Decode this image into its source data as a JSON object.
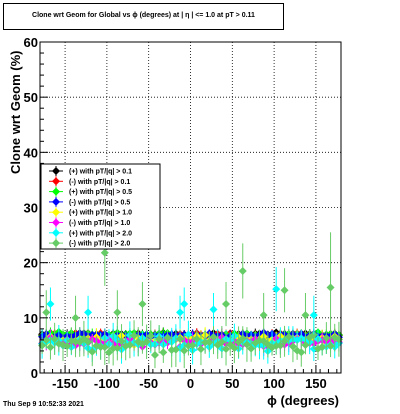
{
  "footer_text": "Thu Sep  9 10:52:33 2021",
  "chart_data": {
    "type": "scatter",
    "title": "Clone wrt Geom for Global vs ϕ (degrees) at | η | <= 1.0 at pT > 0.11",
    "xlabel": "ϕ (degrees)",
    "ylabel": "Clone wrt Geom (%)",
    "xlim": [
      -180,
      180
    ],
    "ylim": [
      0,
      60
    ],
    "x_ticks": [
      -150,
      -100,
      -50,
      0,
      50,
      100,
      150
    ],
    "y_ticks": [
      0,
      10,
      20,
      30,
      40,
      50,
      60
    ],
    "grid": true,
    "legend_position": "left-middle",
    "n_bins": 72,
    "series": [
      {
        "name": "(+) with pT/|q| > 0.1",
        "color": "#000000",
        "mean": 7.0,
        "spread": 0.5,
        "err": 0.7
      },
      {
        "name": "(-) with pT/|q| > 0.1",
        "color": "#ff0000",
        "mean": 6.9,
        "spread": 0.5,
        "err": 0.7
      },
      {
        "name": "(+) with pT/|q| > 0.5",
        "color": "#00ff00",
        "mean": 6.9,
        "spread": 0.6,
        "err": 0.8
      },
      {
        "name": "(-) with pT/|q| > 0.5",
        "color": "#0000ff",
        "mean": 6.8,
        "spread": 0.6,
        "err": 0.8
      },
      {
        "name": "(+) with pT/|q| > 1.0",
        "color": "#ffff00",
        "mean": 6.0,
        "spread": 1.1,
        "err": 1.2
      },
      {
        "name": "(-) with pT/|q| > 1.0",
        "color": "#ff00ff",
        "mean": 5.6,
        "spread": 1.2,
        "err": 1.3
      },
      {
        "name": "(+) with pT/|q| > 2.0",
        "color": "#00ffff",
        "mean": 5.5,
        "spread": 2.2,
        "err": 2.0
      },
      {
        "name": "(-) with pT/|q| > 2.0",
        "color": "#66cc66",
        "mean": 5.2,
        "spread": 2.4,
        "err": 2.3
      }
    ],
    "outliers": [
      {
        "series": 7,
        "x": -102.5,
        "y": 21.8,
        "err": 6.0
      },
      {
        "series": 7,
        "x": 167.5,
        "y": 15.5,
        "err": 10.0
      },
      {
        "series": 7,
        "x": 112.5,
        "y": 15.0,
        "err": 4.0
      },
      {
        "series": 7,
        "x": 62.5,
        "y": 18.5,
        "err": 5.0
      },
      {
        "series": 6,
        "x": 102.5,
        "y": 15.2,
        "err": 4.0
      },
      {
        "series": 7,
        "x": 42.5,
        "y": 12.5,
        "err": 4.0
      },
      {
        "series": 6,
        "x": 147.5,
        "y": 10.5,
        "err": 3.5
      },
      {
        "series": 7,
        "x": -57.5,
        "y": 12.5,
        "err": 4.0
      },
      {
        "series": 6,
        "x": -167.5,
        "y": 12.5,
        "err": 3.0
      },
      {
        "series": 6,
        "x": -7.5,
        "y": 12.5,
        "err": 3.0
      },
      {
        "series": 7,
        "x": -172.5,
        "y": 11.0,
        "err": 4.0
      },
      {
        "series": 7,
        "x": 137.5,
        "y": 10.5,
        "err": 4.0
      },
      {
        "series": 7,
        "x": -137.5,
        "y": 10.0,
        "err": 4.0
      },
      {
        "series": 6,
        "x": -12.5,
        "y": 11.0,
        "err": 3.0
      },
      {
        "series": 6,
        "x": 27.5,
        "y": 11.5,
        "err": 3.0
      },
      {
        "series": 7,
        "x": -87.5,
        "y": 11.0,
        "err": 4.0
      },
      {
        "series": 6,
        "x": -122.5,
        "y": 11.0,
        "err": 3.0
      },
      {
        "series": 7,
        "x": 87.5,
        "y": 10.5,
        "err": 4.0
      }
    ]
  }
}
